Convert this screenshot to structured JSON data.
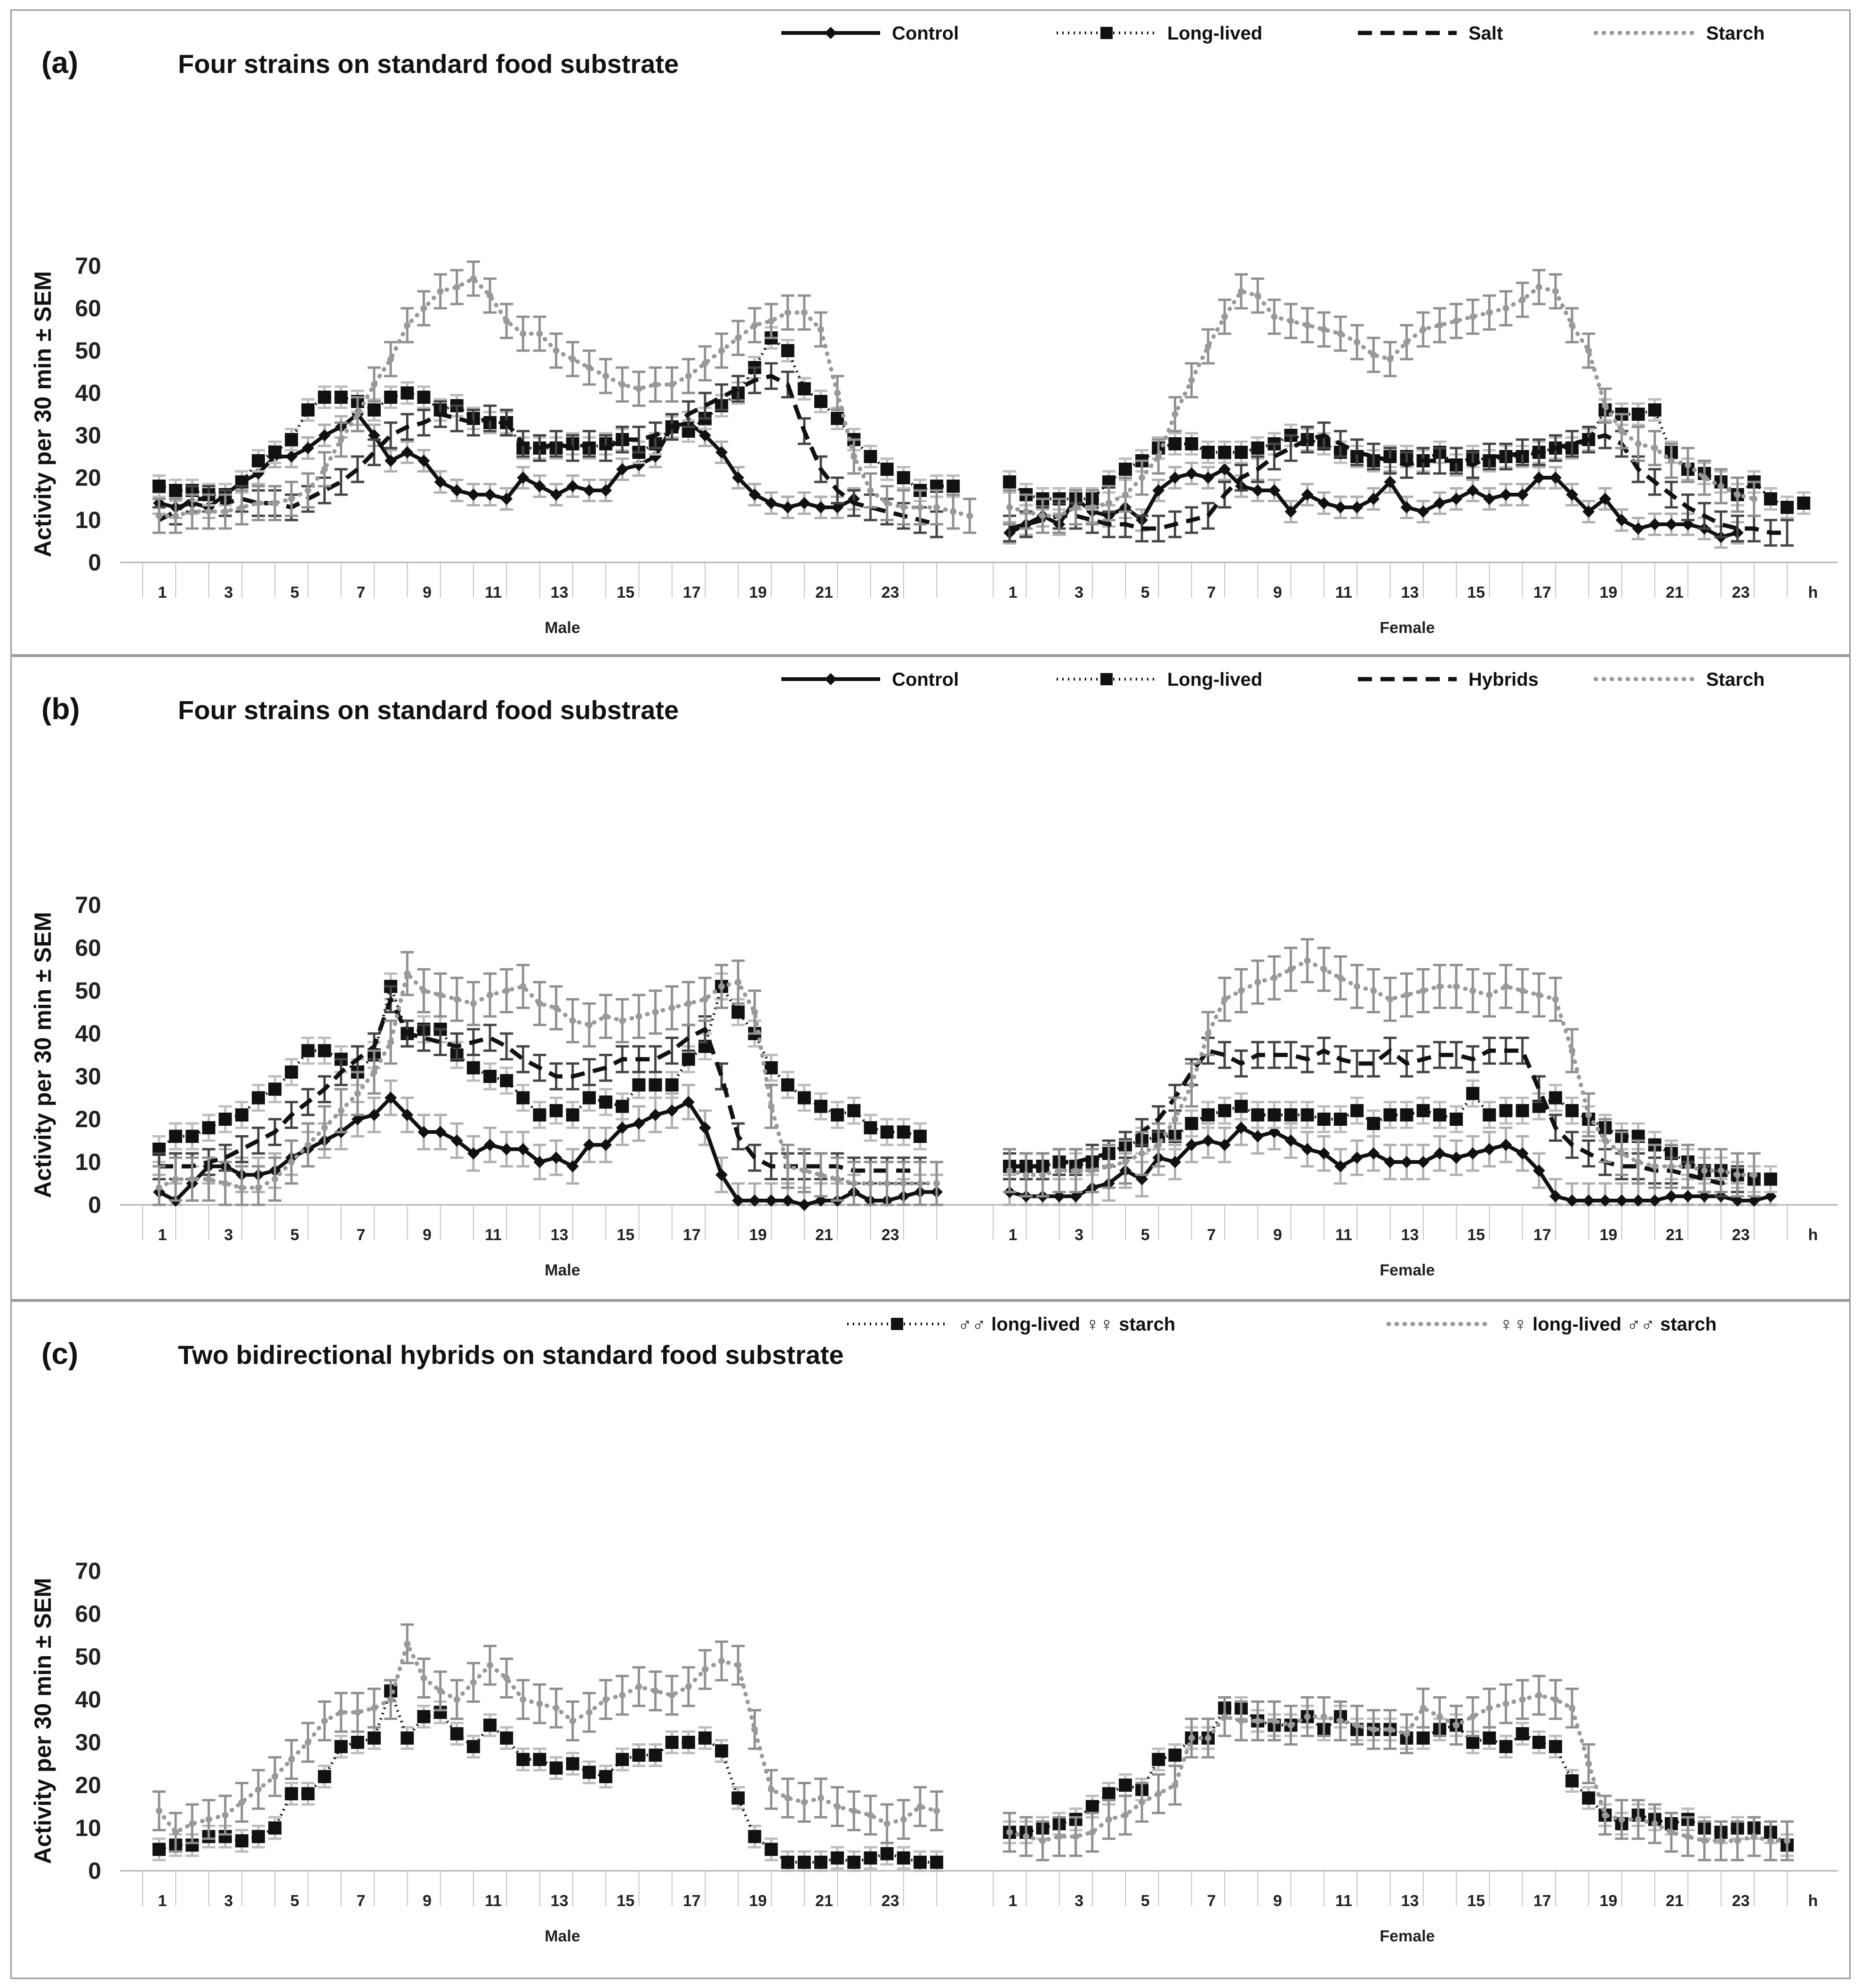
{
  "figure": {
    "y_axis_label": "Activity per 30 min ± SEM",
    "x_group_labels": [
      "Male",
      "Female"
    ],
    "x_ticks": [
      "1",
      "3",
      "5",
      "7",
      "9",
      "11",
      "13",
      "15",
      "17",
      "19",
      "21",
      "23"
    ],
    "x_unit": "h"
  },
  "colors": {
    "black": "#111111",
    "gray": "#999999",
    "error_black": "#b8b8b8",
    "error_gray": "#8f8f8f"
  },
  "chart_data": [
    {
      "type": "line",
      "panel_label": "(a)",
      "title": "Four strains on standard food substrate",
      "ylabel": "Activity per 30 min ± SEM",
      "ylim": [
        0,
        70
      ],
      "y_ticks": [
        0,
        10,
        20,
        30,
        40,
        50,
        60,
        70
      ],
      "x_groups": [
        "Male",
        "Female"
      ],
      "x_ticks": [
        "1",
        "3",
        "5",
        "7",
        "9",
        "11",
        "13",
        "15",
        "17",
        "19",
        "21",
        "23"
      ],
      "x_unit_label": "h",
      "series": [
        {
          "name": "Control",
          "style": "solid-diamond",
          "color": "#111111",
          "male": [
            14,
            13,
            14,
            13,
            16,
            19,
            21,
            25,
            25,
            27,
            30,
            32,
            35,
            30,
            24,
            26,
            24,
            19,
            17,
            16,
            16,
            15,
            20,
            18,
            16,
            18,
            17,
            17,
            22,
            23,
            25,
            32,
            33,
            30,
            26,
            20,
            16,
            14,
            13,
            14,
            13,
            13,
            15
          ],
          "female": [
            7,
            9,
            11,
            9,
            15,
            12,
            11,
            13,
            10,
            17,
            20,
            21,
            20,
            22,
            18,
            17,
            17,
            12,
            16,
            14,
            13,
            13,
            15,
            19,
            13,
            12,
            14,
            15,
            17,
            15,
            16,
            16,
            20,
            20,
            16,
            12,
            15,
            10,
            8,
            9,
            9,
            9,
            8,
            6,
            7
          ],
          "sem": 2.5
        },
        {
          "name": "Long-lived",
          "style": "dotted-square",
          "color": "#111111",
          "male": [
            18,
            17,
            17,
            16,
            16,
            19,
            24,
            26,
            29,
            36,
            39,
            39,
            38,
            36,
            39,
            40,
            39,
            36,
            37,
            34,
            33,
            33,
            27,
            27,
            27,
            28,
            27,
            28,
            29,
            26,
            28,
            32,
            31,
            34,
            37,
            40,
            46,
            53,
            50,
            41,
            38,
            34,
            29,
            25,
            22,
            20,
            17,
            18,
            18
          ],
          "female": [
            19,
            16,
            15,
            15,
            15,
            15,
            19,
            22,
            24,
            27,
            28,
            28,
            26,
            26,
            26,
            27,
            28,
            30,
            29,
            28,
            26,
            25,
            24,
            25,
            25,
            24,
            26,
            23,
            25,
            24,
            25,
            25,
            26,
            27,
            27,
            29,
            36,
            35,
            35,
            36,
            26,
            22,
            21,
            19,
            16,
            19,
            15,
            13,
            14
          ],
          "sem": 2.5
        },
        {
          "name": "Salt",
          "style": "dashed",
          "color": "#111111",
          "male": [
            10,
            12,
            15,
            15,
            14,
            15,
            14,
            14,
            13,
            15,
            17,
            19,
            22,
            26,
            30,
            32,
            33,
            35,
            34,
            33,
            34,
            33,
            28,
            27,
            28,
            27,
            28,
            27,
            29,
            29,
            30,
            32,
            35,
            37,
            39,
            41,
            43,
            44,
            42,
            31,
            22,
            17,
            14,
            13,
            12,
            11,
            10,
            9
          ],
          "female": [
            8,
            9,
            10,
            11,
            11,
            10,
            9,
            9,
            8,
            8,
            9,
            10,
            11,
            16,
            20,
            22,
            25,
            27,
            29,
            30,
            28,
            26,
            25,
            24,
            23,
            24,
            24,
            24,
            23,
            25,
            25,
            26,
            26,
            27,
            28,
            29,
            30,
            28,
            22,
            19,
            16,
            13,
            11,
            9,
            8,
            8,
            7,
            7
          ],
          "sem": 3.0
        },
        {
          "name": "Starch",
          "style": "dotted-gray",
          "color": "#999999",
          "male": [
            11,
            11,
            12,
            12,
            12,
            13,
            14,
            14,
            15,
            17,
            22,
            29,
            35,
            42,
            48,
            56,
            60,
            64,
            65,
            67,
            63,
            57,
            54,
            54,
            50,
            48,
            46,
            44,
            42,
            41,
            42,
            42,
            44,
            47,
            50,
            53,
            56,
            57,
            59,
            59,
            55,
            40,
            25,
            17,
            14,
            13,
            13,
            13,
            12,
            11
          ],
          "female": [
            13,
            12,
            11,
            11,
            13,
            13,
            14,
            16,
            20,
            25,
            35,
            43,
            51,
            58,
            64,
            63,
            58,
            57,
            56,
            55,
            54,
            52,
            49,
            48,
            52,
            55,
            56,
            57,
            58,
            59,
            60,
            62,
            65,
            64,
            56,
            50,
            37,
            31,
            28,
            27,
            24,
            23,
            20,
            18,
            16,
            15
          ],
          "sem": 4.0
        }
      ]
    },
    {
      "type": "line",
      "panel_label": "(b)",
      "title": "Four strains on standard food substrate",
      "ylabel": "Activity per 30 min ± SEM",
      "ylim": [
        0,
        70
      ],
      "y_ticks": [
        0,
        10,
        20,
        30,
        40,
        50,
        60,
        70
      ],
      "x_groups": [
        "Male",
        "Female"
      ],
      "x_ticks": [
        "1",
        "3",
        "5",
        "7",
        "9",
        "11",
        "13",
        "15",
        "17",
        "19",
        "21",
        "23"
      ],
      "x_unit_label": "h",
      "series": [
        {
          "name": "Control",
          "style": "solid-diamond",
          "color": "#111111",
          "male": [
            3,
            1,
            5,
            9,
            9,
            7,
            7,
            8,
            11,
            13,
            15,
            17,
            20,
            21,
            25,
            21,
            17,
            17,
            15,
            12,
            14,
            13,
            13,
            10,
            11,
            9,
            14,
            14,
            18,
            19,
            21,
            22,
            24,
            18,
            7,
            1,
            1,
            1,
            1,
            0,
            1,
            1,
            3,
            1,
            1,
            2,
            3,
            3
          ],
          "female": [
            3,
            2,
            2,
            2,
            2,
            4,
            5,
            8,
            6,
            11,
            10,
            14,
            15,
            14,
            18,
            16,
            17,
            15,
            13,
            12,
            9,
            11,
            12,
            10,
            10,
            10,
            12,
            11,
            12,
            13,
            14,
            12,
            8,
            2,
            1,
            1,
            1,
            1,
            1,
            1,
            2,
            2,
            2,
            2,
            1,
            1,
            2
          ],
          "sem": 4.0
        },
        {
          "name": "Long-lived",
          "style": "dotted-square",
          "color": "#111111",
          "male": [
            13,
            16,
            16,
            18,
            20,
            21,
            25,
            27,
            31,
            36,
            36,
            34,
            31,
            35,
            51,
            40,
            41,
            41,
            35,
            32,
            30,
            29,
            25,
            21,
            22,
            21,
            25,
            24,
            23,
            28,
            28,
            28,
            34,
            37,
            51,
            45,
            40,
            32,
            28,
            25,
            23,
            21,
            22,
            18,
            17,
            17,
            16
          ],
          "female": [
            9,
            9,
            9,
            10,
            9,
            10,
            12,
            14,
            15,
            16,
            16,
            19,
            21,
            22,
            23,
            21,
            21,
            21,
            21,
            20,
            20,
            22,
            19,
            21,
            21,
            22,
            21,
            20,
            26,
            21,
            22,
            22,
            23,
            25,
            22,
            20,
            18,
            16,
            16,
            14,
            12,
            10,
            8,
            8,
            7,
            6,
            6
          ],
          "sem": 3.0
        },
        {
          "name": "Hybrids",
          "style": "dashed",
          "color": "#111111",
          "male": [
            9,
            9,
            9,
            10,
            11,
            13,
            15,
            17,
            21,
            24,
            27,
            31,
            34,
            37,
            48,
            40,
            39,
            38,
            37,
            38,
            39,
            37,
            34,
            32,
            30,
            30,
            31,
            32,
            34,
            34,
            34,
            36,
            39,
            41,
            30,
            16,
            11,
            9,
            9,
            9,
            9,
            9,
            8,
            8,
            8,
            8,
            8
          ],
          "female": [
            9,
            9,
            9,
            10,
            10,
            11,
            12,
            14,
            17,
            20,
            25,
            31,
            36,
            35,
            33,
            35,
            35,
            35,
            34,
            36,
            34,
            33,
            33,
            36,
            33,
            34,
            35,
            35,
            34,
            36,
            36,
            36,
            27,
            18,
            14,
            12,
            10,
            9,
            9,
            8,
            8,
            7,
            6,
            5,
            6
          ],
          "sem": 3.0
        },
        {
          "name": "Starch",
          "style": "dotted-gray",
          "color": "#999999",
          "male": [
            4,
            6,
            6,
            6,
            5,
            4,
            4,
            6,
            10,
            14,
            18,
            22,
            26,
            31,
            38,
            54,
            50,
            49,
            48,
            47,
            49,
            50,
            51,
            47,
            46,
            43,
            42,
            44,
            43,
            44,
            45,
            46,
            47,
            48,
            51,
            52,
            45,
            23,
            9,
            8,
            7,
            6,
            5,
            5,
            5,
            5,
            5,
            5
          ],
          "female": [
            8,
            7,
            7,
            8,
            8,
            8,
            9,
            10,
            12,
            14,
            20,
            28,
            40,
            48,
            50,
            52,
            53,
            55,
            57,
            55,
            53,
            51,
            50,
            48,
            49,
            50,
            51,
            51,
            50,
            49,
            51,
            50,
            49,
            48,
            36,
            21,
            15,
            12,
            10,
            9,
            9,
            9,
            8,
            8,
            7,
            7
          ],
          "sem": 5.0
        }
      ]
    },
    {
      "type": "line",
      "panel_label": "(c)",
      "title": "Two bidirectional hybrids on standard food substrate",
      "ylabel": "Activity per 30 min ± SEM",
      "ylim": [
        0,
        70
      ],
      "y_ticks": [
        0,
        10,
        20,
        30,
        40,
        50,
        60,
        70
      ],
      "x_groups": [
        "Male",
        "Female"
      ],
      "x_ticks": [
        "1",
        "3",
        "5",
        "7",
        "9",
        "11",
        "13",
        "15",
        "17",
        "19",
        "21",
        "23"
      ],
      "x_unit_label": "h",
      "series": [
        {
          "name": "♂♂ long-lived ♀♀ starch",
          "style": "dotted-square",
          "color": "#111111",
          "male": [
            5,
            6,
            6,
            8,
            8,
            7,
            8,
            10,
            18,
            18,
            22,
            29,
            30,
            31,
            42,
            31,
            36,
            37,
            32,
            29,
            34,
            31,
            26,
            26,
            24,
            25,
            23,
            22,
            26,
            27,
            27,
            30,
            30,
            31,
            28,
            17,
            8,
            5,
            2,
            2,
            2,
            3,
            2,
            3,
            4,
            3,
            2,
            2
          ],
          "female": [
            9,
            9,
            10,
            11,
            12,
            15,
            18,
            20,
            19,
            26,
            27,
            31,
            31,
            38,
            38,
            35,
            34,
            34,
            36,
            33,
            36,
            33,
            33,
            33,
            31,
            31,
            33,
            34,
            30,
            31,
            29,
            32,
            30,
            29,
            21,
            17,
            13,
            11,
            13,
            12,
            11,
            12,
            10,
            9,
            10,
            10,
            9,
            6
          ],
          "sem": 2.5
        },
        {
          "name": "♀♀ long-lived ♂♂ starch",
          "style": "dotted-gray",
          "color": "#999999",
          "male": [
            14,
            9,
            11,
            12,
            13,
            16,
            19,
            22,
            26,
            30,
            35,
            37,
            37,
            38,
            40,
            53,
            45,
            42,
            40,
            44,
            48,
            45,
            40,
            39,
            38,
            35,
            37,
            40,
            41,
            43,
            42,
            41,
            43,
            47,
            49,
            48,
            33,
            19,
            17,
            16,
            17,
            15,
            14,
            13,
            11,
            12,
            15,
            14
          ],
          "female": [
            9,
            8,
            7,
            8,
            8,
            9,
            12,
            13,
            16,
            18,
            20,
            31,
            31,
            36,
            35,
            35,
            35,
            34,
            36,
            36,
            35,
            34,
            33,
            33,
            32,
            38,
            36,
            34,
            36,
            38,
            39,
            40,
            41,
            40,
            38,
            25,
            13,
            12,
            12,
            11,
            9,
            8,
            7,
            7,
            7,
            8,
            7,
            7
          ],
          "sem": 4.5
        }
      ]
    }
  ]
}
